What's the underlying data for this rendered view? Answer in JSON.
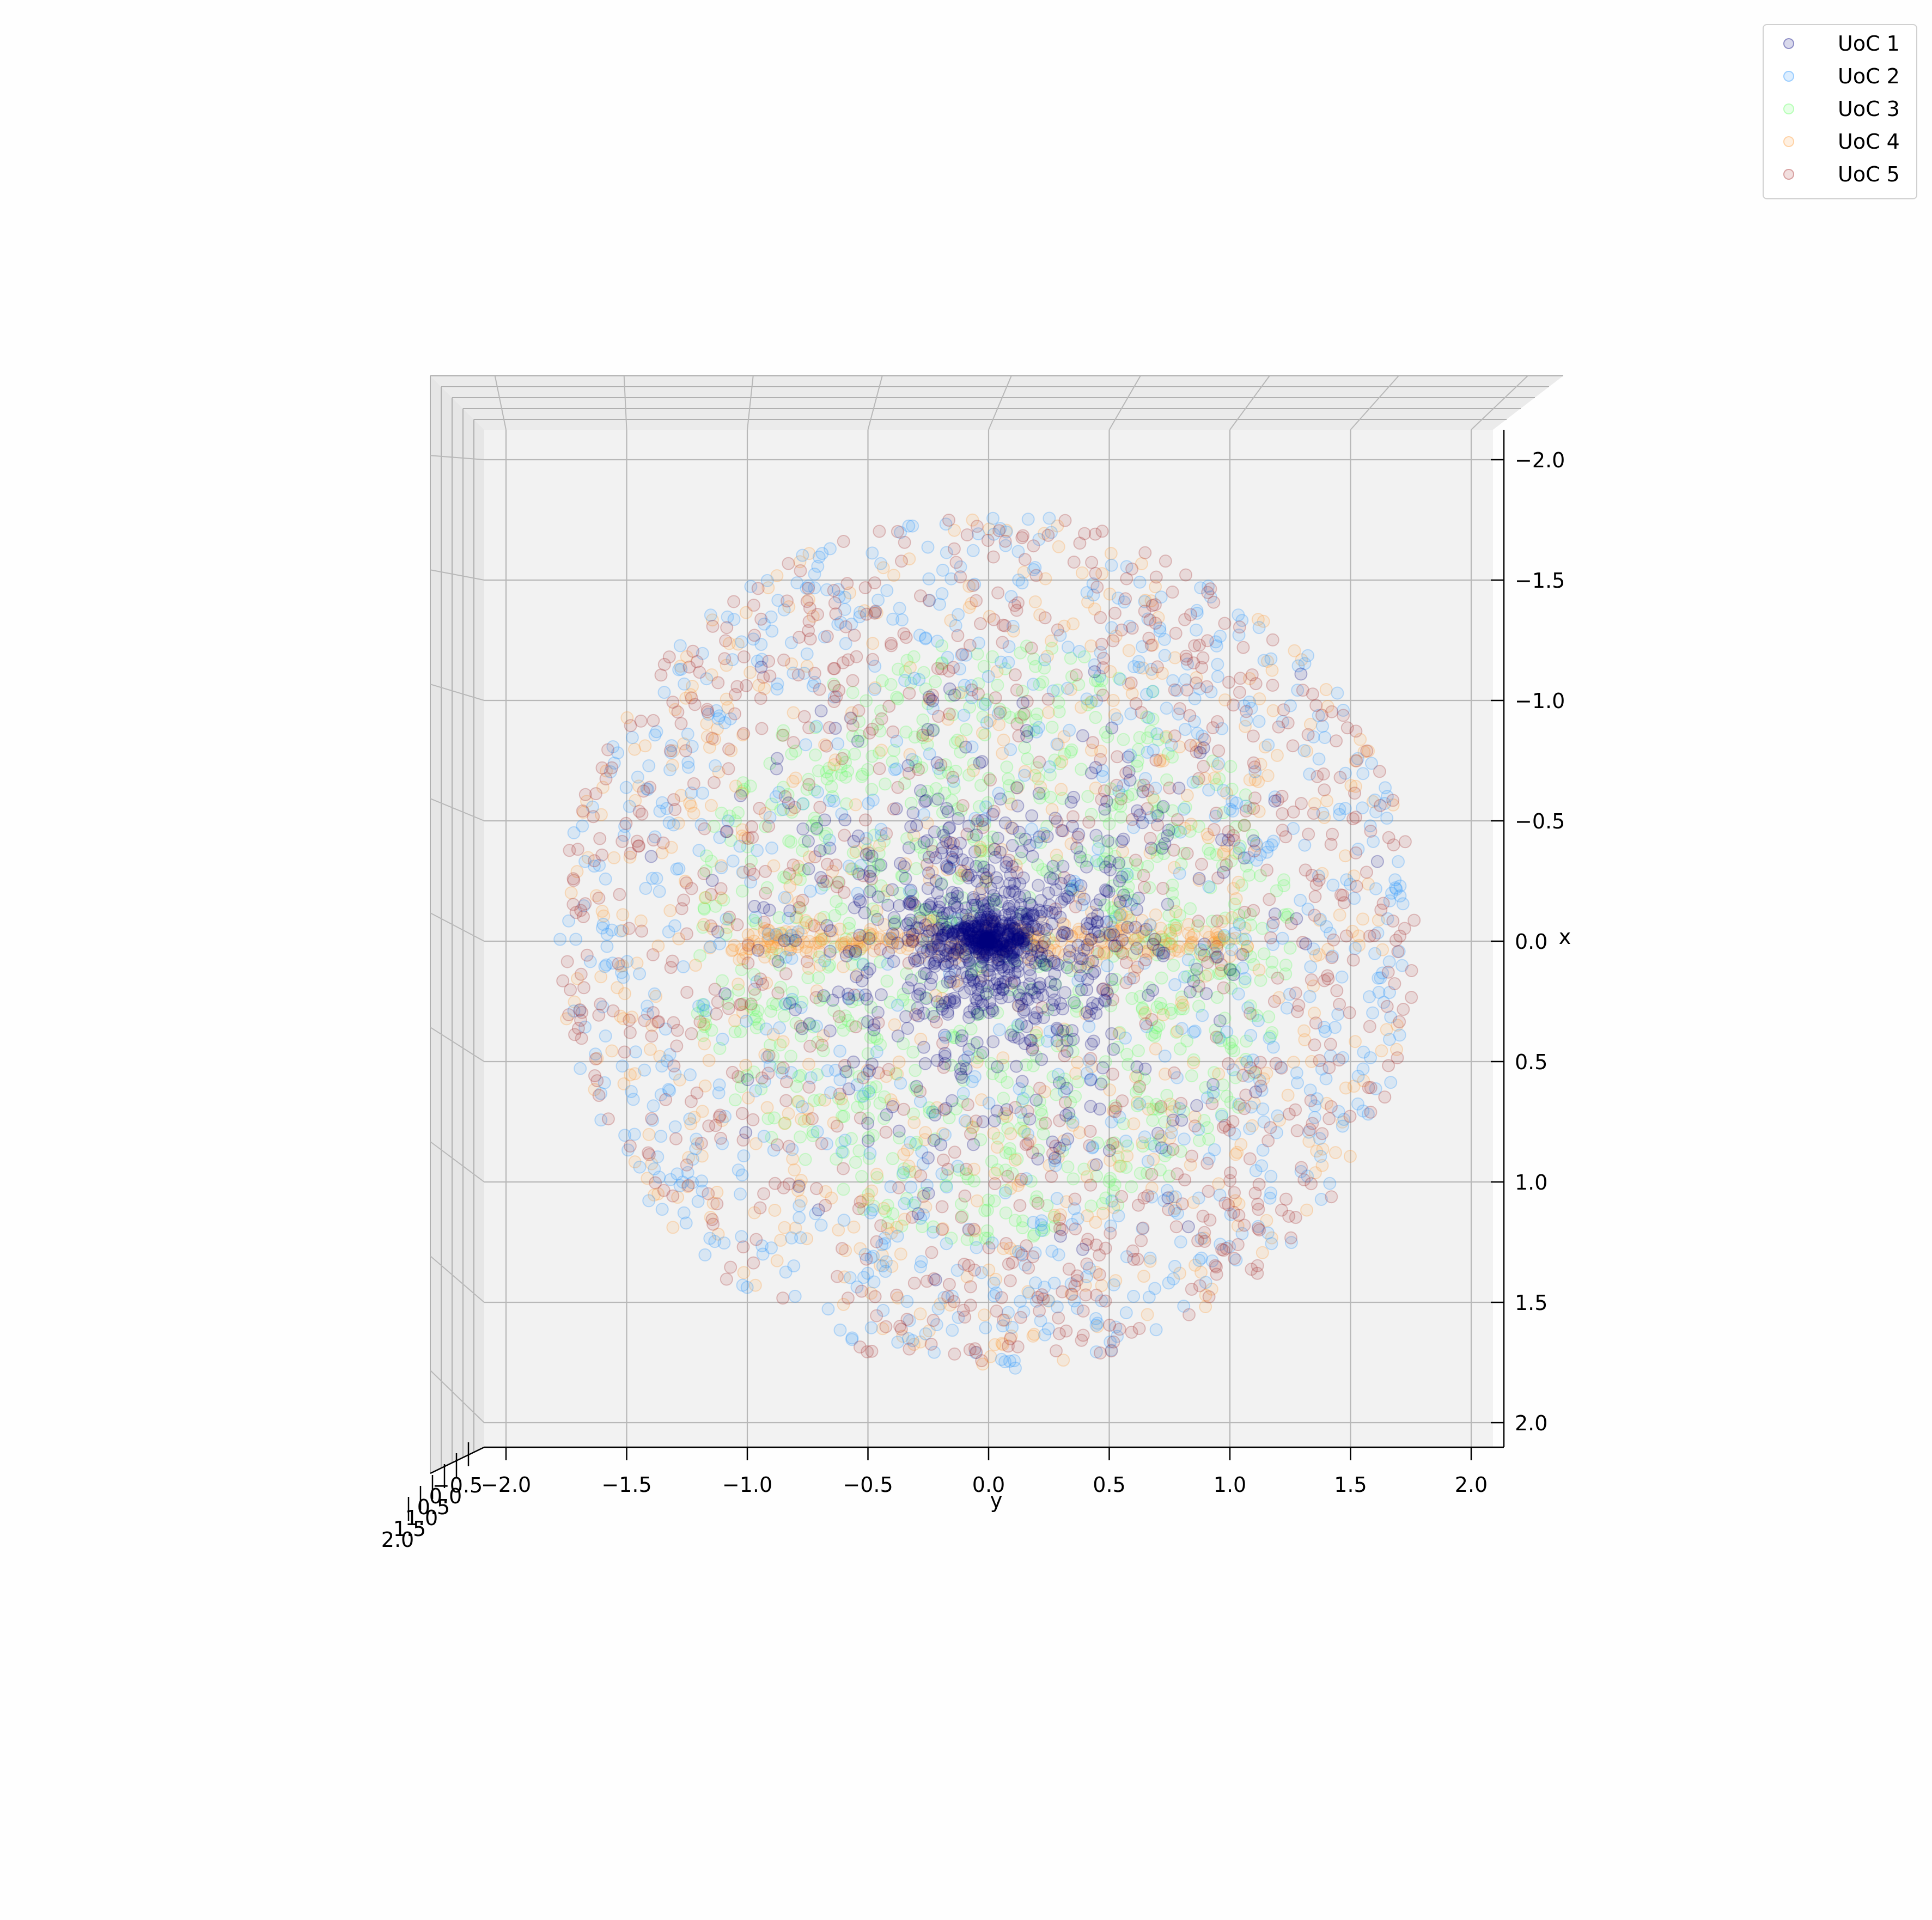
{
  "chart_data": {
    "type": "scatter",
    "projection": "3d",
    "view": "top-down (x vertical, y horizontal, z axis foreshortened at lower-left)",
    "xlabel": "y",
    "ylabel": "x",
    "zlabel": "",
    "xlim": [
      -2.0,
      2.0
    ],
    "ylim": [
      -2.0,
      2.0
    ],
    "zlim": [
      -2.0,
      2.0
    ],
    "x_ticks": [
      "−2.0",
      "−1.5",
      "−1.0",
      "−0.5",
      "0.0",
      "0.5",
      "1.0",
      "1.5",
      "2.0"
    ],
    "y_ticks": [
      "−2.0",
      "−1.5",
      "−1.0",
      "−0.5",
      "0.0",
      "0.5",
      "1.0",
      "1.5",
      "2.0"
    ],
    "z_ticks": [
      "−0.5",
      "0.0",
      "0.5",
      "1.0",
      "1.5",
      "2.0"
    ],
    "grid": true,
    "point_alpha": 0.12,
    "cloud": {
      "shape": "sphere",
      "radius": 1.78,
      "center": [
        0,
        0
      ],
      "approx_points_per_series": 4000
    },
    "legend_position": "top-right",
    "series": [
      {
        "name": "UoC 1",
        "color": "#00007f",
        "distribution": "concentrated toward center, dense dark core"
      },
      {
        "name": "UoC 2",
        "color": "#1e90ff",
        "distribution": "spread across full sphere, dominant near rim"
      },
      {
        "name": "UoC 3",
        "color": "#5cff5c",
        "distribution": "concentrated in inner region"
      },
      {
        "name": "UoC 4",
        "color": "#ff9933",
        "distribution": "scattered, streaks along x = 0"
      },
      {
        "name": "UoC 5",
        "color": "#a52a2a",
        "distribution": "spread across full sphere, dense near rim"
      }
    ]
  }
}
